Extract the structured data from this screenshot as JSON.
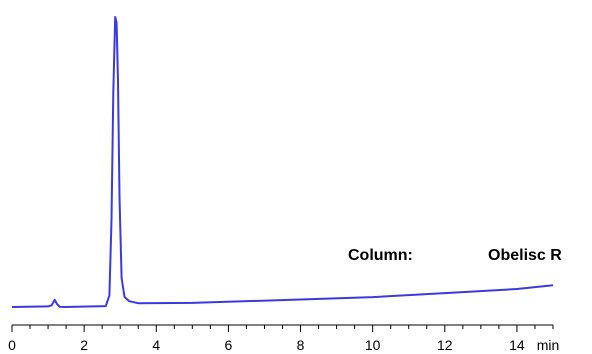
{
  "chart_data": {
    "type": "line",
    "title": "",
    "xlabel": "",
    "ylabel": "",
    "x_unit_label": "min",
    "xlim": [
      0,
      15
    ],
    "ylim": [
      0,
      100
    ],
    "grid": false,
    "x_ticks": [
      0,
      2,
      4,
      6,
      8,
      10,
      12,
      14
    ],
    "x_tick_labels": [
      "0",
      "2",
      "4",
      "6",
      "8",
      "10",
      "12",
      "14"
    ],
    "annotation": {
      "label": "Column:",
      "value": "Obelisc R"
    },
    "series": [
      {
        "color": "#3a3ae0",
        "x": [
          0,
          1.0,
          1.1,
          1.18,
          1.25,
          1.32,
          1.45,
          2.6,
          2.7,
          2.76,
          2.81,
          2.86,
          2.9,
          2.94,
          2.98,
          3.04,
          3.12,
          3.25,
          3.5,
          5.0,
          8.0,
          10.0,
          12.0,
          14.0,
          15.0
        ],
        "y": [
          0,
          0.2,
          0.6,
          2.5,
          1.0,
          0.1,
          0.0,
          0.3,
          4.0,
          30.0,
          74.0,
          100.0,
          98.0,
          78.0,
          38.0,
          10.0,
          3.5,
          2.0,
          1.3,
          1.4,
          2.6,
          3.4,
          4.8,
          6.2,
          7.5
        ]
      }
    ]
  }
}
